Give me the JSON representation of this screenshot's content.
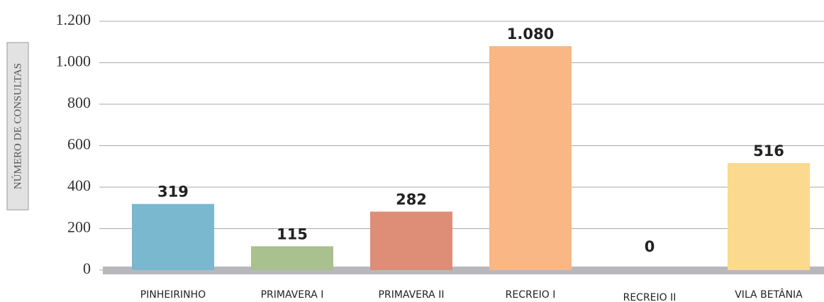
{
  "chart_data": {
    "type": "bar",
    "y_axis_label": "NÚMERO DE CONSULTAS",
    "categories": [
      "PINHEIRINHO",
      "PRIMAVERA I",
      "PRIMAVERA II",
      "RECREIO I",
      "RECREIO II",
      "VILA BETÂNIA"
    ],
    "values": [
      319,
      115,
      282,
      1080,
      0,
      516
    ],
    "value_labels": [
      "319",
      "115",
      "282",
      "1.080",
      "0",
      "516"
    ],
    "colors": [
      "#7ab8cf",
      "#a9c08f",
      "#de8e77",
      "#f8b784",
      "#cccccc",
      "#fbd98e"
    ],
    "ylim": [
      0,
      1200
    ],
    "yticks": [
      0,
      200,
      400,
      600,
      800,
      {
        "value": 1000,
        "label": "1.000"
      },
      {
        "value": 1200,
        "label": "1.200"
      }
    ],
    "grid": true
  }
}
